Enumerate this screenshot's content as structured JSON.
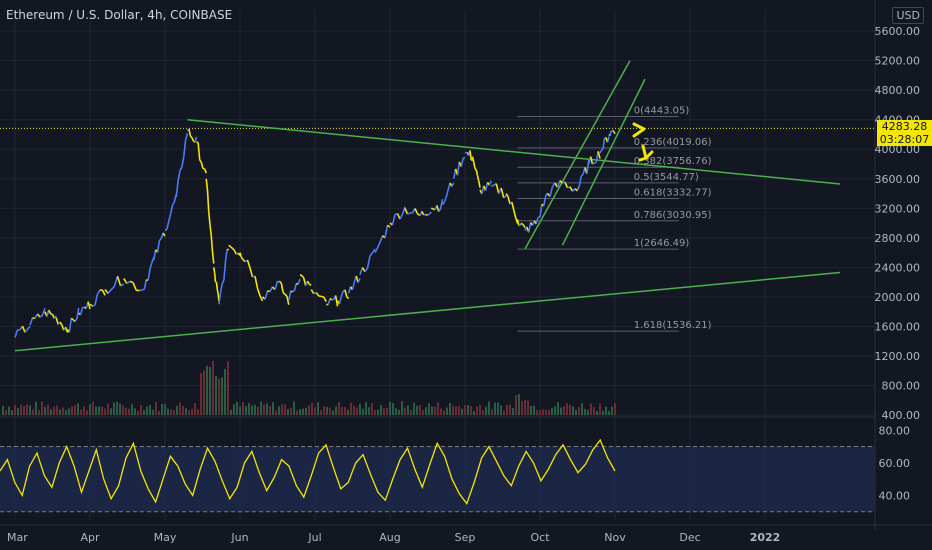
{
  "header": {
    "title": "Ethereum / U.S. Dollar, 4h, COINBASE",
    "currency": "USD"
  },
  "last_price": {
    "value": "4283.28",
    "countdown": "03:28:07"
  },
  "colors": {
    "background": "#131722",
    "candles_up": "#4b7bf5",
    "candles_down": "#f5e500",
    "trendline": "#4caf50",
    "rsi_line": "#f5e500",
    "rsi_band": "#1e2a4e",
    "fib_line": "#5d606b",
    "axis_text": "#b2b5be",
    "annotation_arrow": "#f3e600"
  },
  "chart_data": [
    {
      "type": "line",
      "name": "price",
      "x_labels": [
        "Mar",
        "Apr",
        "May",
        "Jun",
        "Jul",
        "Aug",
        "Sep",
        "Oct",
        "Nov",
        "Dec",
        "2022"
      ],
      "y_ticks": [
        "5600.00",
        "5200.00",
        "4800.00",
        "4400.00",
        "4000.00",
        "3600.00",
        "3200.00",
        "2800.00",
        "2400.00",
        "2000.00",
        "1600.00",
        "1200.00",
        "800.00",
        "400.00"
      ],
      "ylim": [
        400,
        5800
      ],
      "series": [
        {
          "points": [
            [
              0,
              1450
            ],
            [
              0.2,
              1620
            ],
            [
              0.4,
              1800
            ],
            [
              0.55,
              1720
            ],
            [
              0.7,
              1560
            ],
            [
              0.85,
              1780
            ],
            [
              1.0,
              1900
            ],
            [
              1.2,
              2100
            ],
            [
              1.45,
              2250
            ],
            [
              1.7,
              2100
            ],
            [
              1.85,
              2500
            ],
            [
              2.0,
              2900
            ],
            [
              2.15,
              3350
            ],
            [
              2.3,
              4250
            ],
            [
              2.42,
              4100
            ],
            [
              2.55,
              3600
            ],
            [
              2.65,
              2400
            ],
            [
              2.72,
              1900
            ],
            [
              2.85,
              2700
            ],
            [
              3.0,
              2600
            ],
            [
              3.1,
              2500
            ],
            [
              3.3,
              2000
            ],
            [
              3.5,
              2200
            ],
            [
              3.65,
              1950
            ],
            [
              3.8,
              2300
            ],
            [
              3.95,
              2100
            ],
            [
              4.15,
              1900
            ],
            [
              4.3,
              1950
            ],
            [
              4.45,
              2050
            ],
            [
              4.6,
              2300
            ],
            [
              4.8,
              2600
            ],
            [
              5.0,
              3000
            ],
            [
              5.2,
              3200
            ],
            [
              5.4,
              3100
            ],
            [
              5.55,
              3200
            ],
            [
              5.7,
              3250
            ],
            [
              5.85,
              3600
            ],
            [
              6.0,
              3950
            ],
            [
              6.1,
              3900
            ],
            [
              6.2,
              3450
            ],
            [
              6.35,
              3500
            ],
            [
              6.55,
              3400
            ],
            [
              6.7,
              3050
            ],
            [
              6.8,
              2900
            ],
            [
              6.95,
              3000
            ],
            [
              7.1,
              3400
            ],
            [
              7.3,
              3550
            ],
            [
              7.5,
              3450
            ],
            [
              7.65,
              3800
            ],
            [
              7.8,
              3950
            ],
            [
              7.92,
              4200
            ],
            [
              8.0,
              4283.28
            ]
          ]
        }
      ],
      "trendlines": [
        {
          "from": [
            2.3,
            4400
          ],
          "to": [
            11.0,
            3530
          ]
        },
        {
          "from": [
            0,
            1270
          ],
          "to": [
            11.0,
            2330
          ]
        },
        {
          "from": [
            6.8,
            2650
          ],
          "to": [
            8.2,
            5200
          ]
        },
        {
          "from": [
            7.3,
            2700
          ],
          "to": [
            8.4,
            4950
          ]
        }
      ],
      "fibonacci": [
        {
          "level": "0",
          "price": 4443.05,
          "label": "0(4443.05)"
        },
        {
          "level": "0.236",
          "price": 4019.06,
          "label": "0.236(4019.06)"
        },
        {
          "level": "0.382",
          "price": 3756.76,
          "label": "0.382(3756.76)"
        },
        {
          "level": "0.5",
          "price": 3544.77,
          "label": "0.5(3544.77)"
        },
        {
          "level": "0.618",
          "price": 3332.77,
          "label": "0.618(3332.77)"
        },
        {
          "level": "0.786",
          "price": 3030.95,
          "label": "0.786(3030.95)"
        },
        {
          "level": "1",
          "price": 2646.49,
          "label": "1(2646.49)"
        },
        {
          "level": "1.618",
          "price": 1536.21,
          "label": "1.618(1536.21)"
        }
      ],
      "last_price_line": 4283.28,
      "grid": true
    },
    {
      "type": "line",
      "name": "rsi",
      "y_ticks": [
        "80.00",
        "60.00",
        "40.00"
      ],
      "ylim": [
        28,
        82
      ],
      "band": [
        30,
        70
      ],
      "values": [
        55,
        62,
        48,
        40,
        58,
        66,
        52,
        45,
        60,
        70,
        58,
        42,
        55,
        68,
        50,
        38,
        46,
        63,
        72,
        55,
        44,
        36,
        50,
        64,
        58,
        47,
        40,
        56,
        69,
        61,
        49,
        38,
        45,
        60,
        67,
        54,
        43,
        51,
        62,
        58,
        46,
        39,
        52,
        66,
        71,
        57,
        44,
        48,
        60,
        65,
        53,
        42,
        37,
        50,
        62,
        69,
        56,
        45,
        59,
        72,
        64,
        50,
        41,
        35,
        48,
        63,
        70,
        61,
        52,
        46,
        58,
        67,
        60,
        49,
        56,
        65,
        71,
        62,
        54,
        59,
        68,
        74,
        63,
        55
      ]
    }
  ]
}
